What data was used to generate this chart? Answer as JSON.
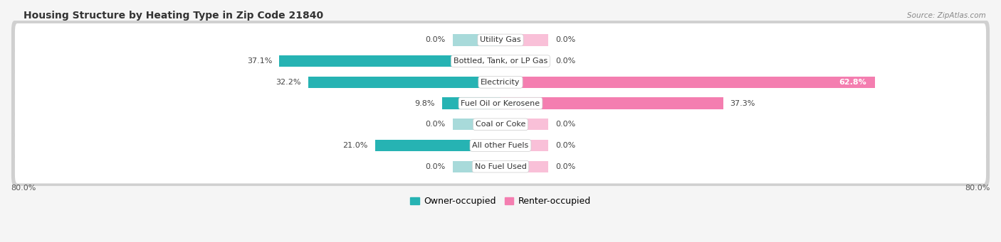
{
  "title": "Housing Structure by Heating Type in Zip Code 21840",
  "source": "Source: ZipAtlas.com",
  "categories": [
    "Utility Gas",
    "Bottled, Tank, or LP Gas",
    "Electricity",
    "Fuel Oil or Kerosene",
    "Coal or Coke",
    "All other Fuels",
    "No Fuel Used"
  ],
  "owner_values": [
    0.0,
    37.1,
    32.2,
    9.8,
    0.0,
    21.0,
    0.0
  ],
  "renter_values": [
    0.0,
    0.0,
    62.8,
    37.3,
    0.0,
    0.0,
    0.0
  ],
  "owner_color": "#26b3b3",
  "renter_color": "#f47eb0",
  "owner_color_zero": "#a8dada",
  "renter_color_zero": "#f9c0d8",
  "axis_min": -80.0,
  "axis_max": 80.0,
  "row_bg_color": "#e8e8e8",
  "row_inner_color": "#f5f5f5",
  "background_color": "#f5f5f5",
  "title_fontsize": 10,
  "label_fontsize": 8,
  "val_fontsize": 8,
  "legend_fontsize": 9,
  "axis_label_fontsize": 8,
  "zero_bar_width": 8.0,
  "bar_height": 0.55
}
